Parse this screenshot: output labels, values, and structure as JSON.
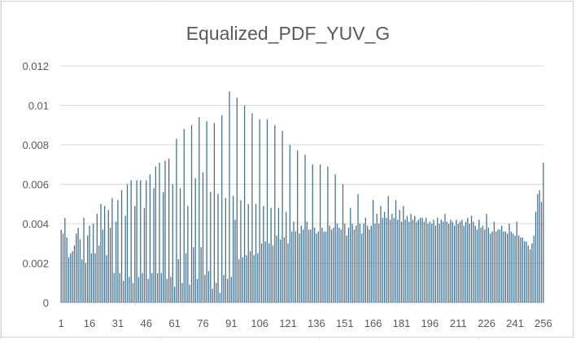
{
  "colors": {
    "bar": "#44718f",
    "gridline": "#d9d9d9",
    "axis_line": "#bfbfbf",
    "text": "#595959",
    "sheet_grid": "#e1e1e1"
  },
  "chart_data": {
    "type": "bar",
    "title": "Equalized_PDF_YUV_G",
    "xlabel": "",
    "ylabel": "",
    "ylim": [
      0,
      0.012
    ],
    "y_ticks": [
      0,
      0.002,
      0.004,
      0.006,
      0.008,
      0.01,
      0.012
    ],
    "y_tick_labels": [
      "0",
      "0.002",
      "0.004",
      "0.006",
      "0.008",
      "0.01",
      "0.012"
    ],
    "x_tick_labels": [
      "1",
      "16",
      "31",
      "46",
      "61",
      "76",
      "91",
      "106",
      "121",
      "136",
      "151",
      "166",
      "181",
      "196",
      "211",
      "226",
      "241",
      "256"
    ],
    "grid": true,
    "legend": "none",
    "x_start": 1,
    "values": [
      0.0037,
      0.0035,
      0.0043,
      0.0033,
      0.0023,
      0.0025,
      0.0026,
      0.0029,
      0.0035,
      0.0038,
      0.0032,
      0.0022,
      0.0043,
      0.002,
      0.0034,
      0.0039,
      0.0025,
      0.004,
      0.0025,
      0.0045,
      0.0029,
      0.005,
      0.0037,
      0.0049,
      0.0024,
      0.0047,
      0.0038,
      0.0053,
      0.0015,
      0.0041,
      0.0052,
      0.0015,
      0.0057,
      0.0011,
      0.0044,
      0.006,
      0.0013,
      0.0062,
      0.001,
      0.0049,
      0.0062,
      0.0013,
      0.0062,
      0.0015,
      0.0048,
      0.0062,
      0.0012,
      0.0065,
      0.0015,
      0.0058,
      0.0069,
      0.0015,
      0.0071,
      0.0015,
      0.0056,
      0.0072,
      0.0012,
      0.0073,
      0.0013,
      0.006,
      0.0008,
      0.0083,
      0.0022,
      0.0058,
      0.001,
      0.0088,
      0.0025,
      0.0049,
      0.0009,
      0.009,
      0.0028,
      0.0063,
      0.0012,
      0.0094,
      0.0028,
      0.0066,
      0.0014,
      0.0092,
      0.0016,
      0.0056,
      0.0007,
      0.0091,
      0.001,
      0.0055,
      0.0005,
      0.0095,
      0.0014,
      0.0053,
      0.0012,
      0.0107,
      0.0013,
      0.0054,
      0.0042,
      0.0104,
      0.0022,
      0.0052,
      0.0023,
      0.01,
      0.0024,
      0.005,
      0.0026,
      0.0096,
      0.0024,
      0.005,
      0.0025,
      0.0093,
      0.003,
      0.0049,
      0.0031,
      0.0093,
      0.003,
      0.0048,
      0.0029,
      0.009,
      0.0034,
      0.0048,
      0.0032,
      0.0087,
      0.0033,
      0.0046,
      0.003,
      0.008,
      0.0036,
      0.0041,
      0.0036,
      0.0077,
      0.0035,
      0.0039,
      0.0037,
      0.0075,
      0.0041,
      0.0037,
      0.0037,
      0.007,
      0.0038,
      0.0035,
      0.0036,
      0.007,
      0.0038,
      0.0036,
      0.0036,
      0.0069,
      0.0039,
      0.0037,
      0.0038,
      0.0065,
      0.004,
      0.0038,
      0.0037,
      0.006,
      0.004,
      0.0034,
      0.0038,
      0.0048,
      0.004,
      0.0037,
      0.0039,
      0.0055,
      0.004,
      0.0035,
      0.004,
      0.0043,
      0.0039,
      0.0037,
      0.0039,
      0.0052,
      0.004,
      0.0045,
      0.004,
      0.0049,
      0.0043,
      0.0046,
      0.0043,
      0.0054,
      0.0042,
      0.0045,
      0.0043,
      0.0052,
      0.0042,
      0.0047,
      0.0041,
      0.0049,
      0.0042,
      0.0044,
      0.0041,
      0.0045,
      0.0042,
      0.0044,
      0.0041,
      0.0042,
      0.0043,
      0.0043,
      0.0041,
      0.0043,
      0.004,
      0.0041,
      0.004,
      0.0042,
      0.0039,
      0.0043,
      0.004,
      0.0042,
      0.0041,
      0.0045,
      0.0041,
      0.004,
      0.0042,
      0.0041,
      0.0039,
      0.0042,
      0.004,
      0.0041,
      0.0042,
      0.0039,
      0.0041,
      0.0043,
      0.004,
      0.0044,
      0.0041,
      0.0039,
      0.0037,
      0.0042,
      0.0038,
      0.0039,
      0.0037,
      0.0045,
      0.0038,
      0.0035,
      0.0036,
      0.0041,
      0.0036,
      0.0037,
      0.0037,
      0.0039,
      0.0036,
      0.0036,
      0.0035,
      0.004,
      0.0036,
      0.0035,
      0.0034,
      0.0041,
      0.0034,
      0.0033,
      0.0033,
      0.0031,
      0.0031,
      0.0029,
      0.0027,
      0.003,
      0.0034,
      0.0046,
      0.0055,
      0.0057,
      0.0051,
      0.0071
    ]
  }
}
